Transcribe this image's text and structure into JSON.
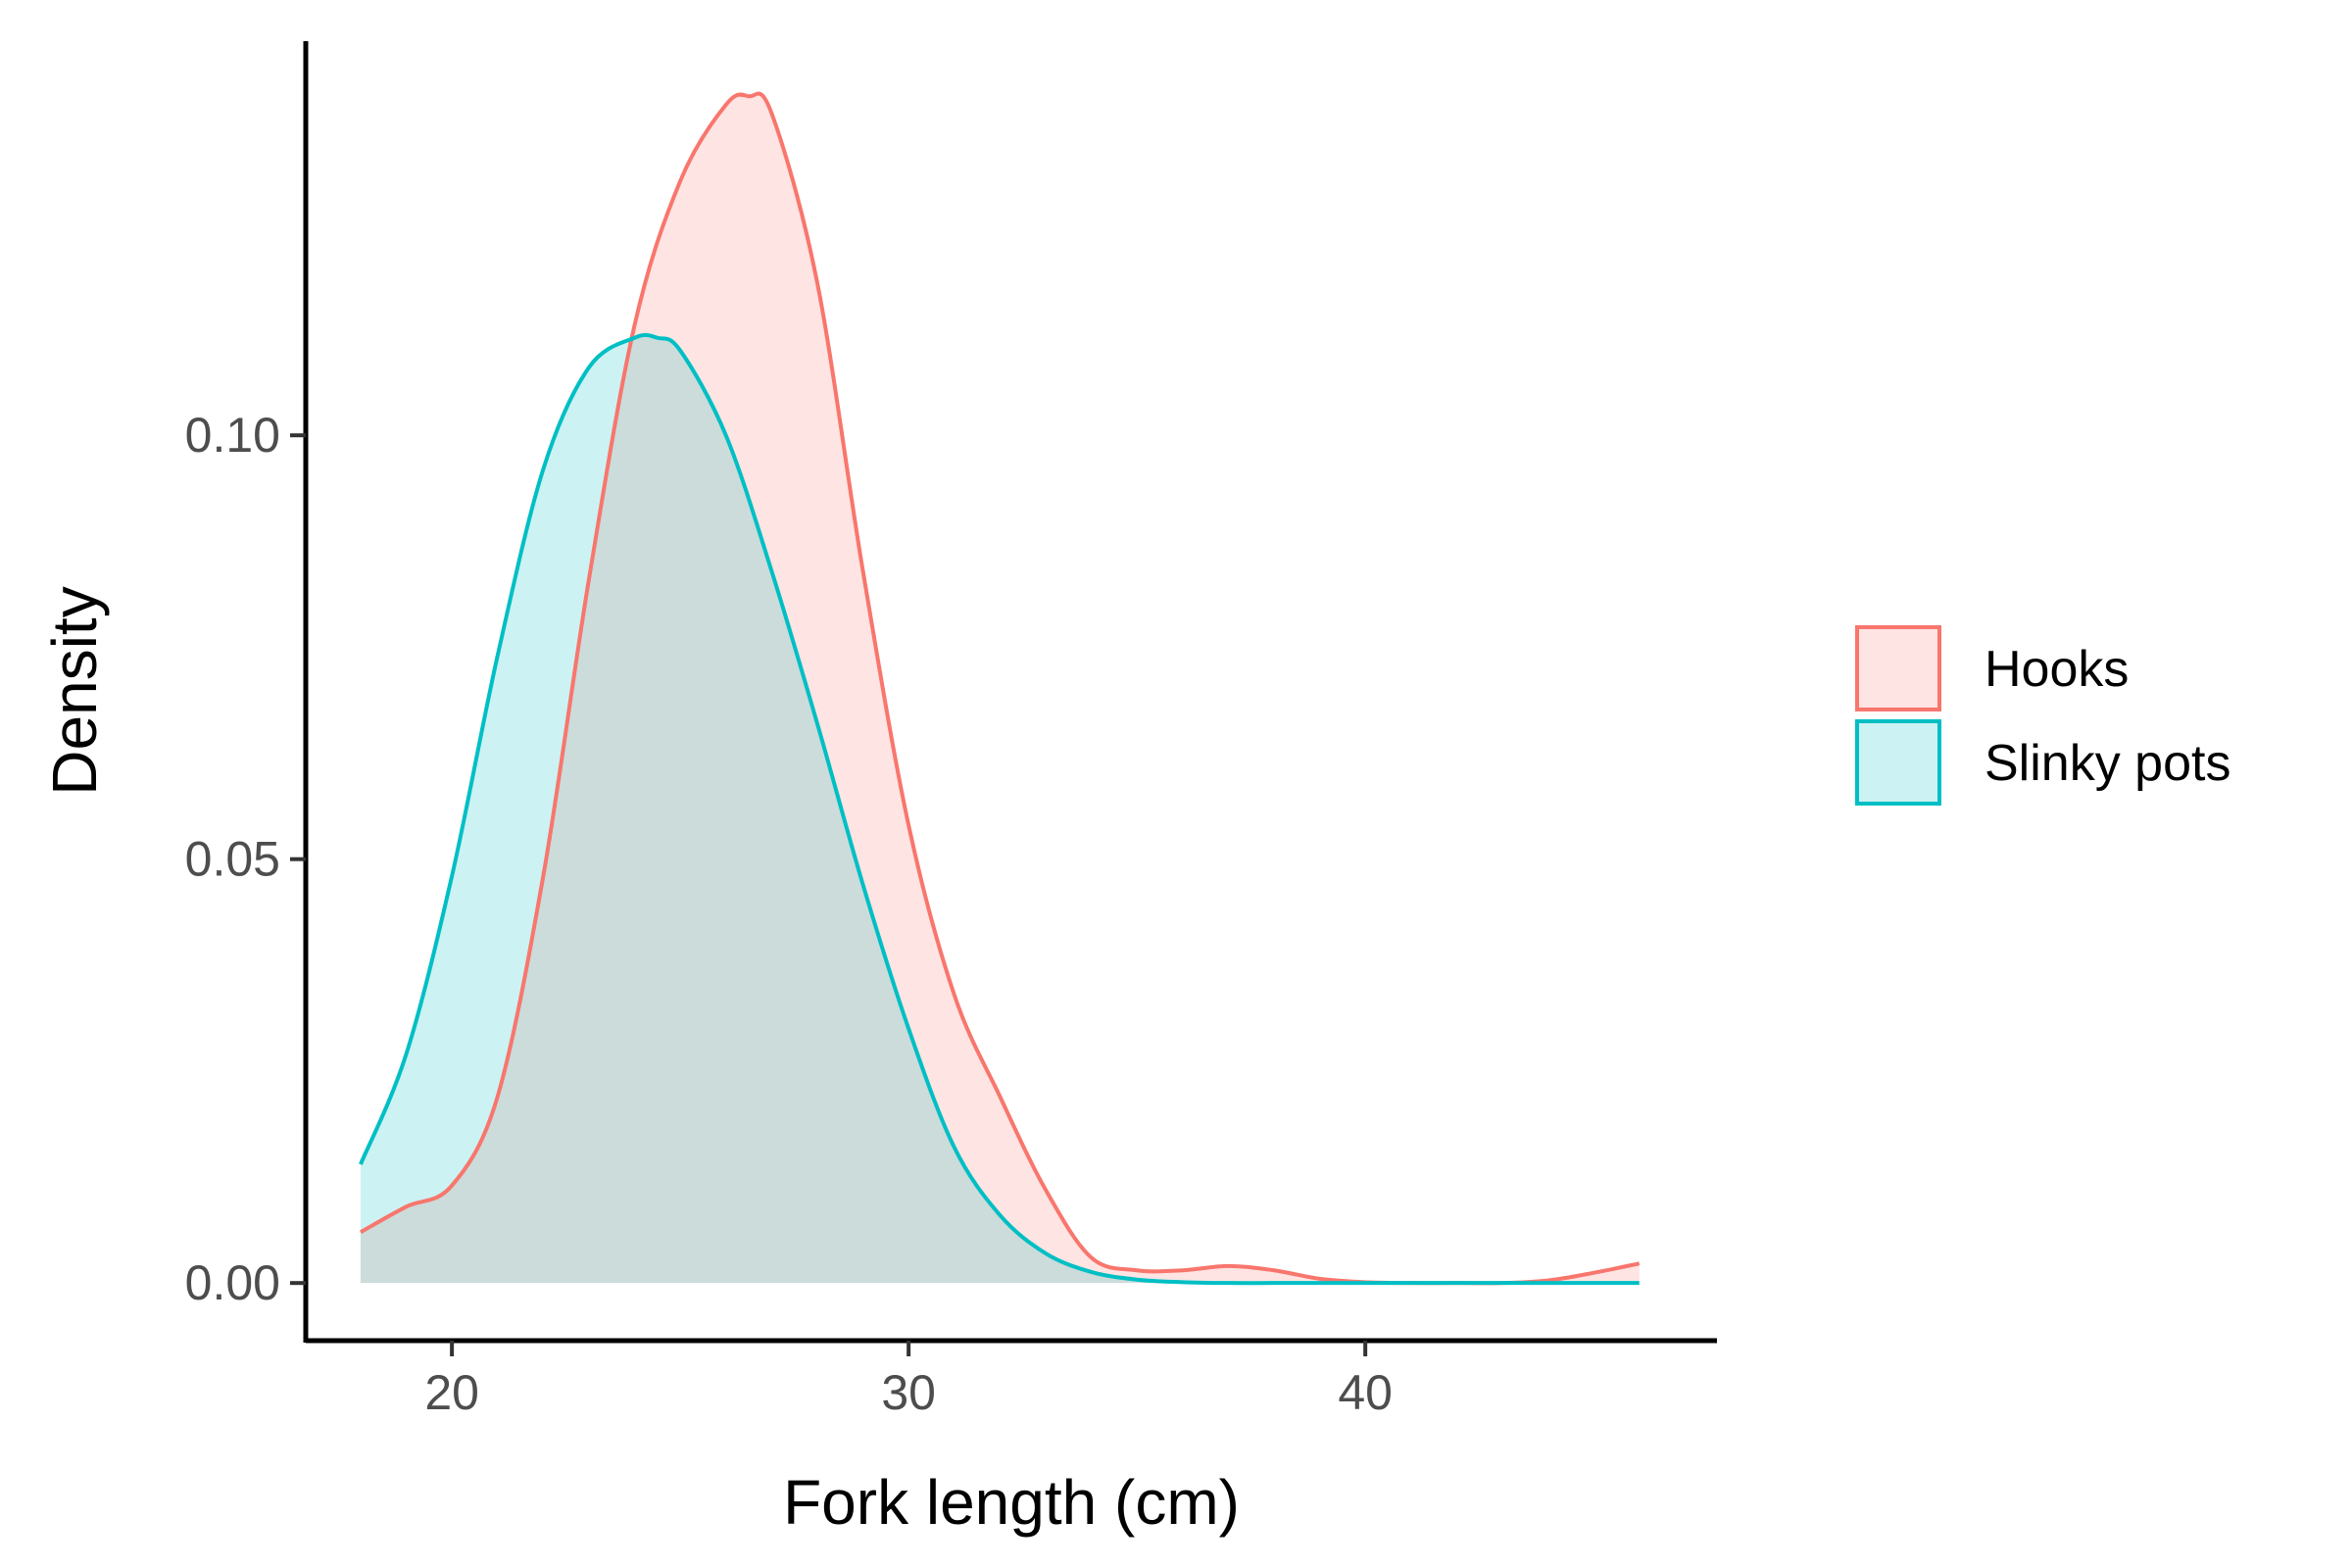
{
  "chart_data": {
    "type": "area",
    "xlabel": "Fork length (cm)",
    "ylabel": "Density",
    "xlim": [
      16.8,
      47.7
    ],
    "ylim": [
      -0.0068,
      0.1465
    ],
    "xticks": [
      20,
      30,
      40
    ],
    "yticks": [
      0.0,
      0.05,
      0.1
    ],
    "xtick_labels": [
      "20",
      "30",
      "40"
    ],
    "ytick_labels": [
      "0.00",
      "0.05",
      "0.10"
    ],
    "grid": false,
    "legend_position": "right",
    "series": [
      {
        "name": "Hooks",
        "color": "#F8766D",
        "fill": "#F8766D",
        "x": [
          18,
          19,
          20,
          21,
          22,
          23,
          24,
          25,
          26,
          26.5,
          27,
          28,
          29,
          30,
          31,
          32,
          33,
          34,
          35,
          36,
          37,
          38,
          39,
          40,
          41,
          42,
          43,
          44,
          45,
          46
        ],
        "y": [
          0.006,
          0.009,
          0.0115,
          0.022,
          0.048,
          0.083,
          0.113,
          0.13,
          0.139,
          0.14,
          0.138,
          0.118,
          0.084,
          0.054,
          0.034,
          0.022,
          0.011,
          0.003,
          0.0015,
          0.0015,
          0.002,
          0.0015,
          0.0005,
          0.0001,
          0.0,
          0.0,
          0.0,
          0.0003,
          0.0012,
          0.0023
        ]
      },
      {
        "name": "Slinky pots",
        "color": "#00BFC4",
        "fill": "#00BFC4",
        "x": [
          18,
          19,
          20,
          21,
          22,
          23,
          24,
          24.5,
          25,
          26,
          27,
          28,
          29,
          30,
          31,
          32,
          33,
          34,
          35,
          36,
          37,
          38,
          39,
          40,
          41,
          42,
          43,
          44,
          45,
          46
        ],
        "y": [
          0.014,
          0.027,
          0.048,
          0.074,
          0.096,
          0.108,
          0.1115,
          0.1115,
          0.11,
          0.1,
          0.084,
          0.066,
          0.047,
          0.03,
          0.016,
          0.008,
          0.0035,
          0.0013,
          0.0004,
          0.0001,
          0.0,
          0.0,
          0.0,
          0.0,
          0.0,
          0.0,
          0.0,
          0.0,
          0.0,
          0.0
        ]
      }
    ]
  }
}
